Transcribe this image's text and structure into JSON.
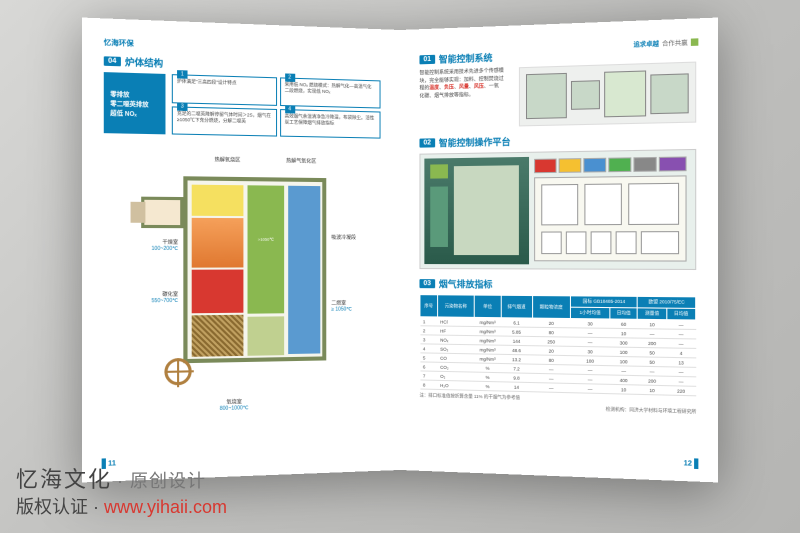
{
  "brand_logo": "忆海环保",
  "left_page": {
    "section_num": "04",
    "section_title": "炉体结构",
    "highlight": {
      "line1": "零排放",
      "line2": "零二噁英排放",
      "line3": "超低 NOₓ"
    },
    "info_boxes": [
      {
        "num": "1",
        "text": "炉体满足\"三高四段\"设计特点"
      },
      {
        "num": "2",
        "text": "采用低 NOₓ 燃烧模式：热解气化—高温气化二段燃烧，实现低 NOₓ"
      },
      {
        "num": "3",
        "text": "充足的二噁英降解停留气体时间＞2S，烟气在≥1050℃下充分燃烧，分解二噁英"
      },
      {
        "num": "4",
        "text": "高效烟气余温清净急冷降温，布袋除尘。活性炭工艺保障烟气排放指标"
      }
    ],
    "labels": {
      "top": "热解氧烧区",
      "top_right": "热解气氧化区",
      "left1": {
        "name": "干燥室",
        "temp": "100~200℃"
      },
      "left2": {
        "name": "碳化室",
        "temp": "550~700℃"
      },
      "right1": "吸波冷凝段",
      "right2": {
        "name": "二燃室",
        "temp": "≥ 1050℃"
      },
      "bottom": {
        "name": "氧烧室",
        "temp": "800~1000℃"
      }
    },
    "page_num": "11"
  },
  "right_page": {
    "corner": {
      "t1": "追求卓越",
      "t2": "合作共赢"
    },
    "section1": {
      "num": "01",
      "title": "智能控制系统"
    },
    "ctrl_desc": "智能控制系统采用技术先进多个传感模块，完全能够实现：加料、控制焚烧过程的温度、负压、风量、风压、一氧化碳、烟气排放等指标。",
    "section2": {
      "num": "02",
      "title": "智能控制操作平台"
    },
    "section3": {
      "num": "03",
      "title": "烟气排放指标"
    },
    "table": {
      "headers": [
        "序号",
        "污染物名称",
        "单位",
        "排气烟道",
        "颗粒物浓度",
        "国标 GB18485-2014",
        "",
        "欧盟 2010/75/EC",
        ""
      ],
      "subheaders": [
        "",
        "",
        "",
        "",
        "",
        "1小时均值",
        "日均值",
        "测量值",
        "日均值"
      ],
      "rows": [
        [
          "1",
          "HCl",
          "mg/Nm³",
          "6.1",
          "20",
          "30",
          "60",
          "10",
          "—"
        ],
        [
          "2",
          "HF",
          "mg/Nm³",
          "5.85",
          "80",
          "—",
          "10",
          "—",
          "—"
        ],
        [
          "3",
          "NOₓ",
          "mg/Nm³",
          "144",
          "250",
          "—",
          "300",
          "200",
          "—"
        ],
        [
          "4",
          "SO₂",
          "mg/Nm³",
          "48.6",
          "20",
          "30",
          "100",
          "50",
          "4"
        ],
        [
          "5",
          "CO",
          "mg/Nm³",
          "13.2",
          "80",
          "100",
          "100",
          "50",
          "13"
        ],
        [
          "6",
          "CO₂",
          "%",
          "7.2",
          "—",
          "—",
          "—",
          "—",
          "—"
        ],
        [
          "7",
          "O₂",
          "%",
          "9.8",
          "—",
          "—",
          "400",
          "200",
          "—"
        ],
        [
          "8",
          "H₂O",
          "%",
          "14",
          "—",
          "—",
          "10",
          "10",
          "220"
        ]
      ],
      "footnote1": "注：排口标准值按折算含量 11% 的干烟气为参考值",
      "footnote2": "检测机构：同济大学材料与环境工程研究所"
    },
    "page_num": "12"
  },
  "watermark": {
    "title": "忆海文化",
    "sub": "· 原创设计",
    "line2_prefix": "版权认证 · ",
    "url": "www.yihaii.com"
  },
  "colors": {
    "primary": "#0a7fb5",
    "accent_red": "#d83830",
    "accent_green": "#8ab850"
  }
}
